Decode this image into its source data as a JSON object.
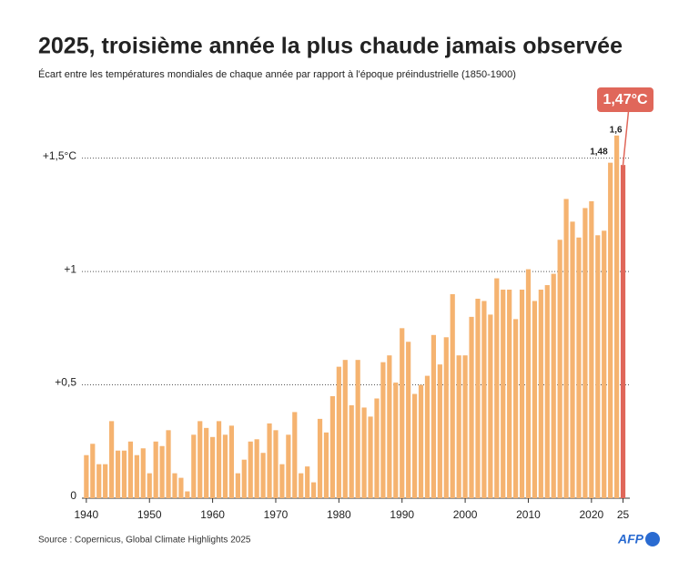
{
  "chart_data": {
    "type": "bar",
    "title": "2025, troisième année la plus chaude jamais observée",
    "subtitle": "Écart entre les températures mondiales de chaque année par rapport à l'époque préindustrielle (1850-1900)",
    "source": "Source : Copernicus, Global Climate Highlights 2025",
    "logo": "AFP",
    "x": [
      1940,
      1941,
      1942,
      1943,
      1944,
      1945,
      1946,
      1947,
      1948,
      1949,
      1950,
      1951,
      1952,
      1953,
      1954,
      1955,
      1956,
      1957,
      1958,
      1959,
      1960,
      1961,
      1962,
      1963,
      1964,
      1965,
      1966,
      1967,
      1968,
      1969,
      1970,
      1971,
      1972,
      1973,
      1974,
      1975,
      1976,
      1977,
      1978,
      1979,
      1980,
      1981,
      1982,
      1983,
      1984,
      1985,
      1986,
      1987,
      1988,
      1989,
      1990,
      1991,
      1992,
      1993,
      1994,
      1995,
      1996,
      1997,
      1998,
      1999,
      2000,
      2001,
      2002,
      2003,
      2004,
      2005,
      2006,
      2007,
      2008,
      2009,
      2010,
      2011,
      2012,
      2013,
      2014,
      2015,
      2016,
      2017,
      2018,
      2019,
      2020,
      2021,
      2022,
      2023,
      2024,
      2025
    ],
    "values": [
      0.19,
      0.24,
      0.15,
      0.15,
      0.34,
      0.21,
      0.21,
      0.25,
      0.19,
      0.22,
      0.11,
      0.25,
      0.23,
      0.3,
      0.11,
      0.09,
      0.03,
      0.28,
      0.34,
      0.31,
      0.27,
      0.34,
      0.28,
      0.32,
      0.11,
      0.17,
      0.25,
      0.26,
      0.2,
      0.33,
      0.3,
      0.15,
      0.28,
      0.38,
      0.11,
      0.14,
      0.07,
      0.35,
      0.29,
      0.45,
      0.58,
      0.61,
      0.41,
      0.61,
      0.4,
      0.36,
      0.44,
      0.6,
      0.63,
      0.51,
      0.75,
      0.69,
      0.46,
      0.5,
      0.54,
      0.72,
      0.59,
      0.71,
      0.9,
      0.63,
      0.63,
      0.8,
      0.88,
      0.87,
      0.81,
      0.97,
      0.92,
      0.92,
      0.79,
      0.92,
      1.01,
      0.87,
      0.92,
      0.94,
      0.99,
      1.14,
      1.32,
      1.22,
      1.15,
      1.28,
      1.31,
      1.16,
      1.18,
      1.48,
      1.6,
      1.47
    ],
    "value_labels": [
      null,
      null,
      null,
      null,
      null,
      null,
      null,
      null,
      null,
      null,
      null,
      null,
      null,
      null,
      null,
      null,
      null,
      null,
      null,
      null,
      null,
      null,
      null,
      null,
      null,
      null,
      null,
      null,
      null,
      null,
      null,
      null,
      null,
      null,
      null,
      null,
      null,
      null,
      null,
      null,
      null,
      null,
      null,
      null,
      null,
      null,
      null,
      null,
      null,
      null,
      null,
      null,
      null,
      null,
      null,
      null,
      null,
      null,
      null,
      null,
      null,
      null,
      null,
      null,
      null,
      null,
      null,
      null,
      null,
      null,
      null,
      null,
      null,
      null,
      null,
      null,
      null,
      null,
      null,
      null,
      null,
      null,
      null,
      "1,48",
      "1,6",
      "1,47°C"
    ],
    "colors": [
      "#f5b370",
      "#f5b370",
      "#f5b370",
      "#f5b370",
      "#f5b370",
      "#f5b370",
      "#f5b370",
      "#f5b370",
      "#f5b370",
      "#f5b370",
      "#f5b370",
      "#f5b370",
      "#f5b370",
      "#f5b370",
      "#f5b370",
      "#f5b370",
      "#f5b370",
      "#f5b370",
      "#f5b370",
      "#f5b370",
      "#f5b370",
      "#f5b370",
      "#f5b370",
      "#f5b370",
      "#f5b370",
      "#f5b370",
      "#f5b370",
      "#f5b370",
      "#f5b370",
      "#f5b370",
      "#f5b370",
      "#f5b370",
      "#f5b370",
      "#f5b370",
      "#f5b370",
      "#f5b370",
      "#f5b370",
      "#f5b370",
      "#f5b370",
      "#f5b370",
      "#f5b370",
      "#f5b370",
      "#f5b370",
      "#f5b370",
      "#f5b370",
      "#f5b370",
      "#f5b370",
      "#f5b370",
      "#f5b370",
      "#f5b370",
      "#f5b370",
      "#f5b370",
      "#f5b370",
      "#f5b370",
      "#f5b370",
      "#f5b370",
      "#f5b370",
      "#f5b370",
      "#f5b370",
      "#f5b370",
      "#f5b370",
      "#f5b370",
      "#f5b370",
      "#f5b370",
      "#f5b370",
      "#f5b370",
      "#f5b370",
      "#f5b370",
      "#f5b370",
      "#f5b370",
      "#f5b370",
      "#f5b370",
      "#f5b370",
      "#f5b370",
      "#f5b370",
      "#f5b370",
      "#f5b370",
      "#f5b370",
      "#f5b370",
      "#f5b370",
      "#f5b370",
      "#f5b370",
      "#f5b370",
      "#f5b370",
      "#f5b370",
      "#e0675a"
    ],
    "xlim": [
      1939.3,
      2025.5
    ],
    "xticks": [
      1940,
      1950,
      1960,
      1970,
      1980,
      1990,
      2000,
      2010,
      2020,
      {
        "value": 2025,
        "label": "25"
      }
    ],
    "ylim": [
      0,
      1.8
    ],
    "yticks": [
      0,
      {
        "value": 0.5,
        "label": "+0,5"
      },
      {
        "value": 1,
        "label": "+1"
      },
      {
        "value": 1.5,
        "label": "+1,5°C"
      }
    ],
    "grid": true
  }
}
